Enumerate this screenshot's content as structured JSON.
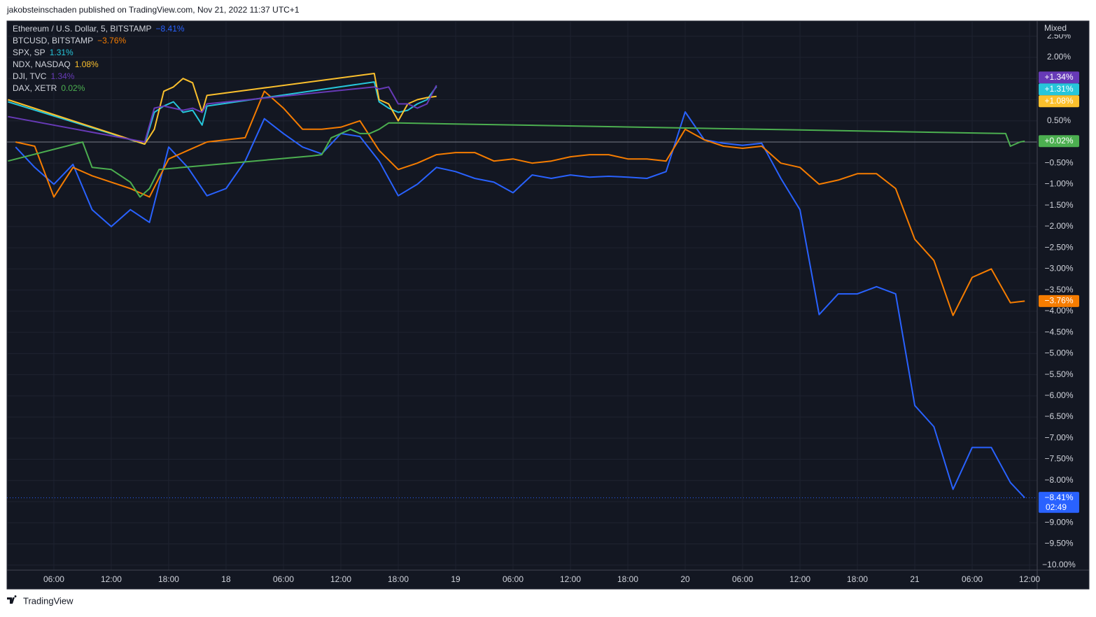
{
  "header": "jakobsteinschaden published on TradingView.com, Nov 21, 2022 11:37 UTC+1",
  "footer": "TradingView",
  "chart_data": {
    "type": "line",
    "scale_mode": "Mixed",
    "xlim": [
      1.1,
      108.8
    ],
    "xticks": [
      {
        "value": 6,
        "label": "06:00"
      },
      {
        "value": 12,
        "label": "12:00"
      },
      {
        "value": 18,
        "label": "18:00"
      },
      {
        "value": 24,
        "label": "18"
      },
      {
        "value": 30,
        "label": "06:00"
      },
      {
        "value": 36,
        "label": "12:00"
      },
      {
        "value": 42,
        "label": "18:00"
      },
      {
        "value": 48,
        "label": "19"
      },
      {
        "value": 54,
        "label": "06:00"
      },
      {
        "value": 60,
        "label": "12:00"
      },
      {
        "value": 66,
        "label": "18:00"
      },
      {
        "value": 72,
        "label": "20"
      },
      {
        "value": 78,
        "label": "06:00"
      },
      {
        "value": 84,
        "label": "12:00"
      },
      {
        "value": 90,
        "label": "18:00"
      },
      {
        "value": 96,
        "label": "21"
      },
      {
        "value": 102,
        "label": "06:00"
      },
      {
        "value": 108,
        "label": "12:00"
      }
    ],
    "ylim": [
      -10.12,
      2.86
    ],
    "yticks": [
      {
        "value": 2.5,
        "label": "2.50%"
      },
      {
        "value": 2,
        "label": "2.00%"
      },
      {
        "value": 1.5,
        "label": "1.50%"
      },
      {
        "value": 1,
        "label": "1.00%"
      },
      {
        "value": 0.5,
        "label": "0.50%"
      },
      {
        "value": 0,
        "label": "0.00%"
      },
      {
        "value": -0.5,
        "label": "−0.50%"
      },
      {
        "value": -1,
        "label": "−1.00%"
      },
      {
        "value": -1.5,
        "label": "−1.50%"
      },
      {
        "value": -2,
        "label": "−2.00%"
      },
      {
        "value": -2.5,
        "label": "−2.50%"
      },
      {
        "value": -3,
        "label": "−3.00%"
      },
      {
        "value": -3.5,
        "label": "−3.50%"
      },
      {
        "value": -4,
        "label": "−4.00%"
      },
      {
        "value": -4.5,
        "label": "−4.50%"
      },
      {
        "value": -5,
        "label": "−5.00%"
      },
      {
        "value": -5.5,
        "label": "−5.50%"
      },
      {
        "value": -6,
        "label": "−6.00%"
      },
      {
        "value": -6.5,
        "label": "−6.50%"
      },
      {
        "value": -7,
        "label": "−7.00%"
      },
      {
        "value": -7.5,
        "label": "−7.50%"
      },
      {
        "value": -8,
        "label": "−8.00%"
      },
      {
        "value": -8.5,
        "label": "−8.50%"
      },
      {
        "value": -9,
        "label": "−9.00%"
      },
      {
        "value": -9.5,
        "label": "−9.50%"
      },
      {
        "value": -10,
        "label": "−10.00%"
      }
    ],
    "grid": true,
    "series": [
      {
        "name": "Ethereum / U.S. Dollar, 5, BITSTAMP",
        "color": "#2962ff",
        "legend_label": "−8.41%",
        "badge_label": "−8.41%",
        "countdown": "02:49",
        "x": [
          2,
          4,
          6,
          8,
          10,
          12,
          14,
          16,
          18,
          20,
          22,
          24,
          26,
          28,
          30,
          32,
          34,
          36,
          38,
          40,
          42,
          44,
          46,
          48,
          50,
          52,
          54,
          56,
          58,
          60,
          62,
          64,
          66,
          68,
          70,
          72,
          74,
          76,
          78,
          80,
          82,
          84,
          86,
          88,
          90,
          92,
          94,
          96,
          98,
          100,
          102,
          104,
          106,
          107.5
        ],
        "values": [
          -0.12,
          -0.6,
          -1.0,
          -0.53,
          -1.6,
          -2.0,
          -1.6,
          -1.9,
          -0.12,
          -0.6,
          -1.27,
          -1.1,
          -0.45,
          0.55,
          0.2,
          -0.12,
          -0.28,
          0.2,
          0.13,
          -0.45,
          -1.27,
          -1.0,
          -0.6,
          -0.7,
          -0.86,
          -0.95,
          -1.2,
          -0.78,
          -0.86,
          -0.78,
          -0.83,
          -0.81,
          -0.83,
          -0.86,
          -0.7,
          0.71,
          0.05,
          -0.03,
          -0.08,
          -0.03,
          -0.86,
          -1.6,
          -4.08,
          -3.59,
          -3.59,
          -3.42,
          -3.59,
          -6.23,
          -6.73,
          -8.21,
          -7.22,
          -7.22,
          -8.05,
          -8.41
        ]
      },
      {
        "name": "BTCUSD, BITSTAMP",
        "color": "#f57c00",
        "legend_label": "−3.76%",
        "badge_label": "−3.76%",
        "x": [
          2,
          4,
          6,
          8,
          10,
          12,
          14,
          16,
          18,
          20,
          22,
          24,
          26,
          28,
          30,
          32,
          34,
          36,
          38,
          40,
          42,
          44,
          46,
          48,
          50,
          52,
          54,
          56,
          58,
          60,
          62,
          64,
          66,
          68,
          70,
          72,
          74,
          76,
          78,
          80,
          82,
          84,
          86,
          88,
          90,
          92,
          94,
          96,
          98,
          100,
          102,
          104,
          106,
          107.5
        ],
        "values": [
          0.0,
          -0.1,
          -1.3,
          -0.6,
          -0.8,
          -0.95,
          -1.1,
          -1.3,
          -0.4,
          -0.2,
          0.0,
          0.05,
          0.1,
          1.2,
          0.8,
          0.3,
          0.3,
          0.35,
          0.5,
          -0.2,
          -0.65,
          -0.5,
          -0.3,
          -0.25,
          -0.25,
          -0.45,
          -0.4,
          -0.5,
          -0.45,
          -0.35,
          -0.3,
          -0.3,
          -0.4,
          -0.4,
          -0.45,
          0.3,
          0.05,
          -0.1,
          -0.15,
          -0.1,
          -0.5,
          -0.6,
          -1.0,
          -0.9,
          -0.75,
          -0.75,
          -1.1,
          -2.3,
          -2.8,
          -4.1,
          -3.2,
          -3.0,
          -3.8,
          -3.76
        ]
      },
      {
        "name": "SPX, SP",
        "color": "#26c6da",
        "legend_label": "1.31%",
        "badge_label": "+1.31%",
        "x": [
          1.2,
          15.5,
          16.5,
          17.5,
          18.5,
          19.5,
          20.5,
          21.5,
          22,
          39.5,
          40,
          41,
          42,
          43,
          44,
          45,
          46
        ],
        "values": [
          0.95,
          -0.05,
          0.7,
          0.85,
          0.95,
          0.7,
          0.75,
          0.4,
          0.85,
          1.42,
          0.95,
          0.8,
          0.7,
          0.75,
          0.9,
          1.0,
          1.31
        ]
      },
      {
        "name": "NDX, NASDAQ",
        "color": "#fbc02d",
        "legend_label": "1.08%",
        "badge_label": "+1.08%",
        "x": [
          1.2,
          15.5,
          16.5,
          17.5,
          18.5,
          19.5,
          20.5,
          21.5,
          22,
          39.5,
          40,
          41,
          42,
          43,
          44,
          45,
          46
        ],
        "values": [
          1.0,
          -0.05,
          0.3,
          1.2,
          1.3,
          1.5,
          1.4,
          0.7,
          1.1,
          1.62,
          1.0,
          0.9,
          0.5,
          0.9,
          1.0,
          1.05,
          1.08
        ]
      },
      {
        "name": "DJI, TVC",
        "color": "#673ab7",
        "legend_label": "1.34%",
        "badge_label": "+1.34%",
        "x": [
          1.2,
          15.5,
          16.5,
          17.5,
          18.5,
          19.5,
          20.5,
          21.5,
          22,
          39.5,
          40,
          41,
          42,
          43,
          44,
          45,
          46
        ],
        "values": [
          0.6,
          0.0,
          0.8,
          0.85,
          0.8,
          0.75,
          0.8,
          0.7,
          0.9,
          1.3,
          1.25,
          1.3,
          0.9,
          0.9,
          0.8,
          0.9,
          1.34
        ]
      },
      {
        "name": "DAX, XETR",
        "color": "#4caf50",
        "legend_label": "0.02%",
        "badge_label": "+0.02%",
        "x": [
          1.2,
          9,
          10,
          12,
          14,
          15,
          16,
          17,
          33,
          34,
          35,
          36,
          37,
          38,
          39,
          40,
          41,
          42,
          105.5,
          106,
          107,
          107.5
        ],
        "values": [
          -0.45,
          0.0,
          -0.6,
          -0.65,
          -0.95,
          -1.3,
          -1.1,
          -0.65,
          -0.33,
          -0.3,
          0.1,
          0.2,
          0.3,
          0.2,
          0.2,
          0.3,
          0.45,
          0.45,
          0.2,
          -0.1,
          0.0,
          0.02
        ]
      }
    ]
  }
}
